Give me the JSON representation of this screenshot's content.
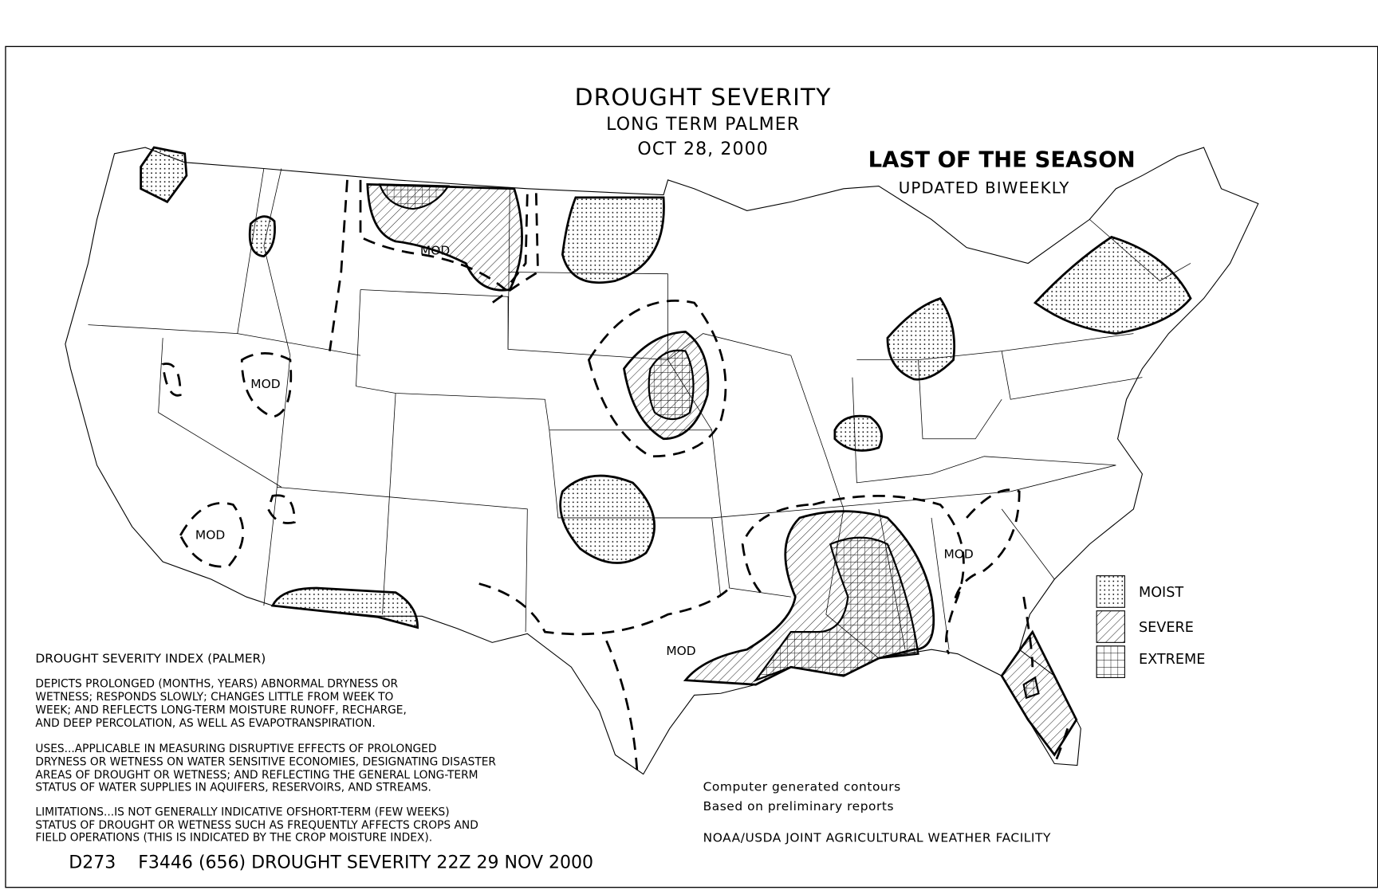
{
  "title": {
    "line1": "DROUGHT SEVERITY",
    "line2": "LONG TERM PALMER",
    "line3": "OCT 28, 2000"
  },
  "notice": {
    "headline": "LAST OF THE SEASON",
    "subline": "UPDATED BIWEEKLY"
  },
  "map_labels": [
    "MOD",
    "MOD",
    "MOD",
    "MOD",
    "MOD"
  ],
  "legend": {
    "items": [
      {
        "label": "MOIST",
        "pattern": "dots"
      },
      {
        "label": "SEVERE",
        "pattern": "diagonal-hatch"
      },
      {
        "label": "EXTREME",
        "pattern": "grid"
      }
    ]
  },
  "description": {
    "heading": "DROUGHT SEVERITY INDEX (PALMER)",
    "para1": [
      "DEPICTS PROLONGED (MONTHS, YEARS) ABNORMAL DRYNESS OR",
      "WETNESS; RESPONDS SLOWLY; CHANGES LITTLE FROM WEEK TO",
      "WEEK; AND REFLECTS LONG-TERM MOISTURE RUNOFF, RECHARGE,",
      "AND DEEP PERCOLATION, AS WELL AS EVAPOTRANSPIRATION."
    ],
    "para2": [
      "USES...APPLICABLE IN MEASURING DISRUPTIVE EFFECTS OF PROLONGED",
      "DRYNESS OR WETNESS ON WATER SENSITIVE ECONOMIES, DESIGNATING DISASTER",
      "AREAS OF DROUGHT OR WETNESS; AND REFLECTING THE GENERAL LONG-TERM",
      "STATUS OF WATER SUPPLIES IN AQUIFERS, RESERVOIRS, AND STREAMS."
    ],
    "para3": [
      "LIMITATIONS...IS NOT GENERALLY INDICATIVE OFSHORT-TERM (FEW WEEKS)",
      "STATUS OF DROUGHT OR WETNESS SUCH AS FREQUENTLY AFFECTS CROPS AND",
      "FIELD OPERATIONS (THIS IS INDICATED BY THE CROP MOISTURE INDEX)."
    ]
  },
  "credits": {
    "line1": "Computer generated contours",
    "line2": "Based on preliminary reports",
    "line3": "NOAA/USDA JOINT AGRICULTURAL WEATHER FACILITY"
  },
  "footer": "D273    F3446 (656) DROUGHT SEVERITY 22Z 29 NOV 2000",
  "colors": {
    "ink": "#000000",
    "background": "#ffffff"
  }
}
